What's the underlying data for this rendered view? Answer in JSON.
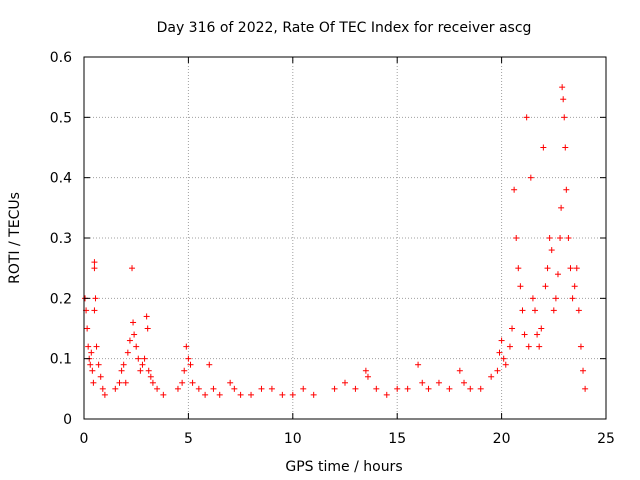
{
  "chart_data": {
    "type": "scatter",
    "title": "Day 316 of 2022, Rate Of TEC Index for receiver ascg",
    "xlabel": "GPS time / hours",
    "ylabel": "ROTI / TECUs",
    "xlim": [
      0,
      25
    ],
    "ylim": [
      0,
      0.6
    ],
    "xticks": [
      "0",
      "5",
      "10",
      "15",
      "20",
      "25"
    ],
    "yticks": [
      "0",
      "0.1",
      "0.2",
      "0.3",
      "0.4",
      "0.5",
      "0.6"
    ],
    "grid": true,
    "marker": "plus",
    "color": "#ff0000",
    "series": [
      {
        "name": "",
        "points": [
          [
            0.05,
            0.2
          ],
          [
            0.1,
            0.18
          ],
          [
            0.15,
            0.15
          ],
          [
            0.2,
            0.12
          ],
          [
            0.25,
            0.1
          ],
          [
            0.3,
            0.09
          ],
          [
            0.35,
            0.11
          ],
          [
            0.4,
            0.08
          ],
          [
            0.45,
            0.06
          ],
          [
            0.5,
            0.26
          ],
          [
            0.5,
            0.25
          ],
          [
            0.55,
            0.2
          ],
          [
            0.5,
            0.18
          ],
          [
            0.6,
            0.12
          ],
          [
            0.7,
            0.09
          ],
          [
            0.8,
            0.07
          ],
          [
            0.9,
            0.05
          ],
          [
            1.0,
            0.04
          ],
          [
            1.5,
            0.05
          ],
          [
            1.7,
            0.06
          ],
          [
            1.8,
            0.08
          ],
          [
            1.9,
            0.09
          ],
          [
            2.0,
            0.06
          ],
          [
            2.1,
            0.11
          ],
          [
            2.2,
            0.13
          ],
          [
            2.3,
            0.25
          ],
          [
            2.35,
            0.16
          ],
          [
            2.4,
            0.14
          ],
          [
            2.5,
            0.12
          ],
          [
            2.6,
            0.1
          ],
          [
            2.7,
            0.08
          ],
          [
            2.8,
            0.09
          ],
          [
            2.9,
            0.1
          ],
          [
            3.0,
            0.17
          ],
          [
            3.05,
            0.15
          ],
          [
            3.1,
            0.08
          ],
          [
            3.2,
            0.07
          ],
          [
            3.3,
            0.06
          ],
          [
            3.5,
            0.05
          ],
          [
            3.8,
            0.04
          ],
          [
            4.5,
            0.05
          ],
          [
            4.7,
            0.06
          ],
          [
            4.8,
            0.08
          ],
          [
            4.9,
            0.12
          ],
          [
            5.0,
            0.1
          ],
          [
            5.1,
            0.09
          ],
          [
            5.2,
            0.06
          ],
          [
            5.5,
            0.05
          ],
          [
            5.8,
            0.04
          ],
          [
            6.0,
            0.09
          ],
          [
            6.2,
            0.05
          ],
          [
            6.5,
            0.04
          ],
          [
            7.0,
            0.06
          ],
          [
            7.2,
            0.05
          ],
          [
            7.5,
            0.04
          ],
          [
            8.0,
            0.04
          ],
          [
            8.5,
            0.05
          ],
          [
            9.0,
            0.05
          ],
          [
            9.5,
            0.04
          ],
          [
            10.0,
            0.04
          ],
          [
            10.5,
            0.05
          ],
          [
            11.0,
            0.04
          ],
          [
            12.0,
            0.05
          ],
          [
            12.5,
            0.06
          ],
          [
            13.0,
            0.05
          ],
          [
            13.5,
            0.08
          ],
          [
            13.6,
            0.07
          ],
          [
            14.0,
            0.05
          ],
          [
            14.5,
            0.04
          ],
          [
            15.0,
            0.05
          ],
          [
            15.5,
            0.05
          ],
          [
            16.0,
            0.09
          ],
          [
            16.2,
            0.06
          ],
          [
            16.5,
            0.05
          ],
          [
            17.0,
            0.06
          ],
          [
            17.5,
            0.05
          ],
          [
            18.0,
            0.08
          ],
          [
            18.2,
            0.06
          ],
          [
            18.5,
            0.05
          ],
          [
            19.0,
            0.05
          ],
          [
            19.5,
            0.07
          ],
          [
            19.8,
            0.08
          ],
          [
            19.9,
            0.11
          ],
          [
            20.0,
            0.13
          ],
          [
            20.1,
            0.1
          ],
          [
            20.2,
            0.09
          ],
          [
            20.4,
            0.12
          ],
          [
            20.5,
            0.15
          ],
          [
            20.6,
            0.38
          ],
          [
            20.7,
            0.3
          ],
          [
            20.8,
            0.25
          ],
          [
            20.9,
            0.22
          ],
          [
            21.0,
            0.18
          ],
          [
            21.1,
            0.14
          ],
          [
            21.2,
            0.5
          ],
          [
            21.3,
            0.12
          ],
          [
            21.4,
            0.4
          ],
          [
            21.5,
            0.2
          ],
          [
            21.6,
            0.18
          ],
          [
            21.7,
            0.14
          ],
          [
            21.8,
            0.12
          ],
          [
            21.9,
            0.15
          ],
          [
            22.0,
            0.45
          ],
          [
            22.1,
            0.22
          ],
          [
            22.2,
            0.25
          ],
          [
            22.3,
            0.3
          ],
          [
            22.4,
            0.28
          ],
          [
            22.5,
            0.18
          ],
          [
            22.6,
            0.2
          ],
          [
            22.7,
            0.24
          ],
          [
            22.8,
            0.3
          ],
          [
            22.85,
            0.35
          ],
          [
            22.9,
            0.55
          ],
          [
            22.95,
            0.53
          ],
          [
            23.0,
            0.5
          ],
          [
            23.05,
            0.45
          ],
          [
            23.1,
            0.38
          ],
          [
            23.2,
            0.3
          ],
          [
            23.3,
            0.25
          ],
          [
            23.4,
            0.2
          ],
          [
            23.5,
            0.22
          ],
          [
            23.6,
            0.25
          ],
          [
            23.7,
            0.18
          ],
          [
            23.8,
            0.12
          ],
          [
            23.9,
            0.08
          ],
          [
            24.0,
            0.05
          ]
        ]
      }
    ]
  }
}
